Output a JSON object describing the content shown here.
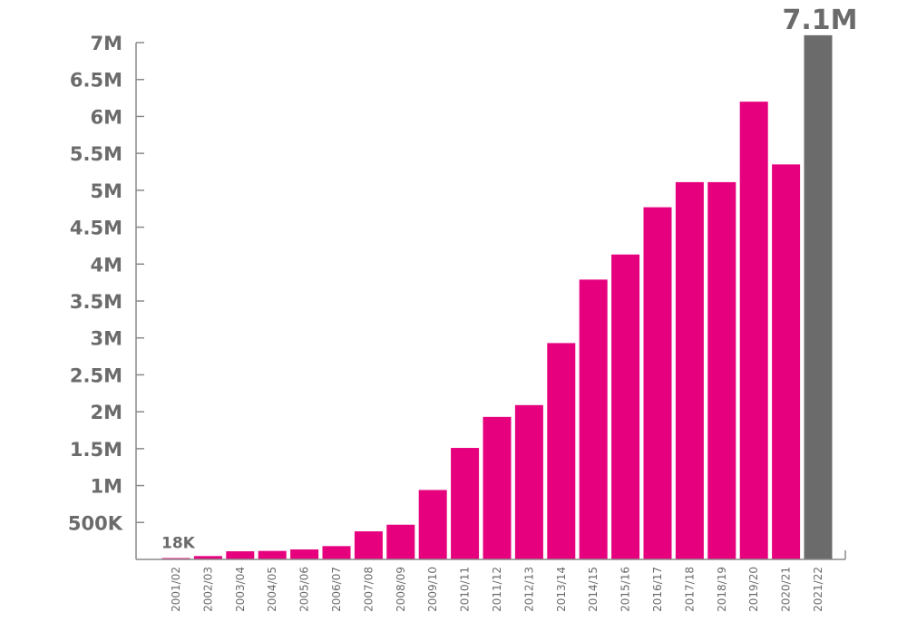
{
  "chart_data": {
    "type": "bar",
    "categories": [
      "2001/02",
      "2002/03",
      "2003/04",
      "2004/05",
      "2005/06",
      "2006/07",
      "2007/08",
      "2008/09",
      "2009/10",
      "2010/11",
      "2011/12",
      "2012/13",
      "2013/14",
      "2014/15",
      "2015/16",
      "2016/17",
      "2017/18",
      "2018/19",
      "2019/20",
      "2020/21",
      "2021/22"
    ],
    "values": [
      18000,
      45000,
      110000,
      115000,
      135000,
      180000,
      380000,
      470000,
      940000,
      1510000,
      1930000,
      2090000,
      2930000,
      3790000,
      4130000,
      4770000,
      5110000,
      5110000,
      6200000,
      5350000,
      7100000
    ],
    "ylim": [
      0,
      7000000
    ],
    "yticks": [
      {
        "value": 500000,
        "label": "500K"
      },
      {
        "value": 1000000,
        "label": "1M"
      },
      {
        "value": 1500000,
        "label": "1.5M"
      },
      {
        "value": 2000000,
        "label": "2M"
      },
      {
        "value": 2500000,
        "label": "2.5M"
      },
      {
        "value": 3000000,
        "label": "3M"
      },
      {
        "value": 3500000,
        "label": "3.5M"
      },
      {
        "value": 4000000,
        "label": "4M"
      },
      {
        "value": 4500000,
        "label": "4.5M"
      },
      {
        "value": 5000000,
        "label": "5M"
      },
      {
        "value": 5500000,
        "label": "5.5M"
      },
      {
        "value": 6000000,
        "label": "6M"
      },
      {
        "value": 6500000,
        "label": "6.5M"
      },
      {
        "value": 7000000,
        "label": "7M"
      }
    ],
    "data_labels": [
      {
        "category": "2001/02",
        "text": "18K"
      },
      {
        "category": "2021/22",
        "text": "7.1M"
      }
    ],
    "colors": {
      "bar": "#e6007e",
      "highlight": "#6b6b6b",
      "axis": "#8a8a8a",
      "text": "#6b6b6b"
    },
    "highlight_category": "2021/22",
    "grid": false,
    "title": "",
    "xlabel": "",
    "ylabel": ""
  }
}
